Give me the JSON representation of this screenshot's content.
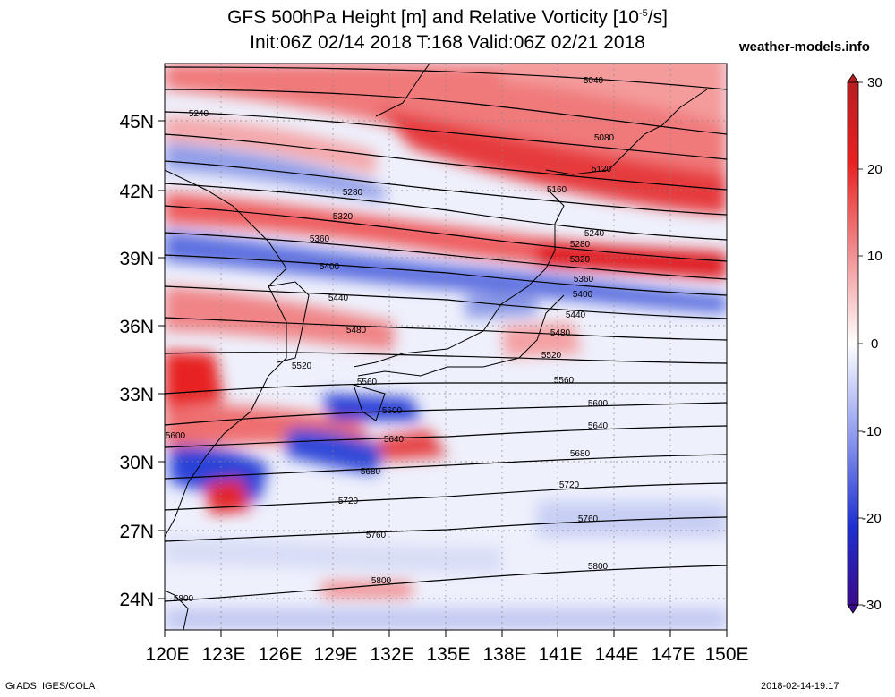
{
  "header": {
    "title_line1": "GFS 500hPa Height [m] and Relative Vorticity [10",
    "title_exp": "-5",
    "title_unit": "/s]",
    "title_line2": "Init:06Z 02/14 2018 T:168 Valid:06Z 02/21 2018",
    "site": "weather-models.info"
  },
  "footer": {
    "software": "GrADS: IGES/COLA",
    "timestamp": "2018-02-14-19:17"
  },
  "map": {
    "lat_labels": [
      "45N",
      "42N",
      "39N",
      "36N",
      "33N",
      "30N",
      "27N",
      "24N"
    ],
    "lon_labels": [
      "120E",
      "123E",
      "126E",
      "129E",
      "132E",
      "135E",
      "138E",
      "141E",
      "144E",
      "147E",
      "150E"
    ],
    "contour_labels": [
      "5040",
      "5080",
      "5120",
      "5160",
      "5240",
      "5280",
      "5320",
      "5360",
      "5400",
      "5440",
      "5480",
      "5520",
      "5560",
      "5600",
      "5640",
      "5680",
      "5720",
      "5760",
      "5800"
    ],
    "colors": {
      "positive": "#e8272a",
      "negative": "#2840d8",
      "neutral": "#ffffff"
    }
  },
  "colorbar": {
    "ticks": [
      "30",
      "20",
      "10",
      "0",
      "-10",
      "-20",
      "-30"
    ],
    "min": -30,
    "max": 30
  }
}
